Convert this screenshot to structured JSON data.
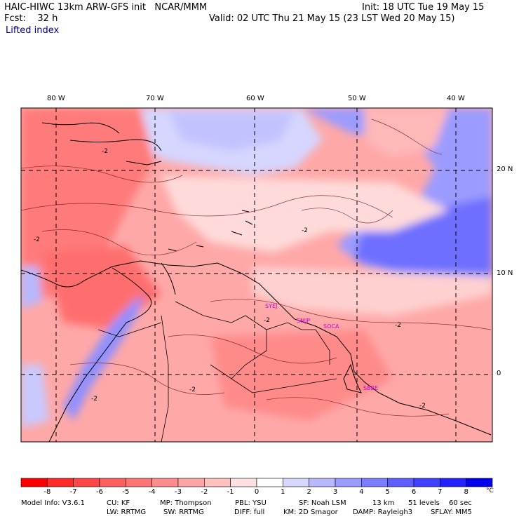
{
  "header": {
    "title": "HAIC-HIWC 13km ARW-GFS init   NCAR/MMM",
    "init": "Init: 18 UTC Tue 19 May 15",
    "forecast": "Fcst:    32 h",
    "valid": "Valid: 02 UTC Thu 21 May 15 (23 LST Wed 20 May 15)",
    "field": "Lifted index"
  },
  "map": {
    "lon_labels": [
      "80 W",
      "70 W",
      "60 W",
      "50 W",
      "40 W"
    ],
    "lat_labels": [
      "20 N",
      "10 N",
      "0"
    ],
    "station_labels": [
      "SYEJ",
      "SMJP",
      "SOCA",
      "SBBE"
    ],
    "contour_labels": [
      "-2",
      "-2",
      "-2",
      "-2",
      "-2",
      "-2",
      "-2",
      "-2"
    ]
  },
  "colorbar": {
    "labels": [
      "-8",
      "-7",
      "-6",
      "-5",
      "-4",
      "-3",
      "-2",
      "-1",
      "0",
      "1",
      "2",
      "3",
      "4",
      "5",
      "6",
      "7",
      "8"
    ],
    "unit": "°C",
    "colors": [
      "#ff0000",
      "#ff2a2a",
      "#ff4646",
      "#ff5f5f",
      "#ff7575",
      "#ff8c8c",
      "#ffa5a5",
      "#ffc0c0",
      "#ffe0e0",
      "#ffffff",
      "#d8d8ff",
      "#b8b8ff",
      "#9a9aff",
      "#7c7cff",
      "#5e5eff",
      "#4040ff",
      "#2222ff",
      "#0000ee"
    ]
  },
  "footer": {
    "line1": [
      "Model Info: V3.6.1",
      "CU: KF",
      "MP: Thompson",
      "PBL: YSU",
      "SF: Noah LSM",
      "13 km",
      "51 levels",
      "60 sec"
    ],
    "line2": [
      "LW: RRTMG",
      "SW: RRTMG",
      "DIFF: full",
      "KM: 2D Smagor",
      "DAMP: Rayleigh3",
      "SFLAY: MM5"
    ]
  }
}
